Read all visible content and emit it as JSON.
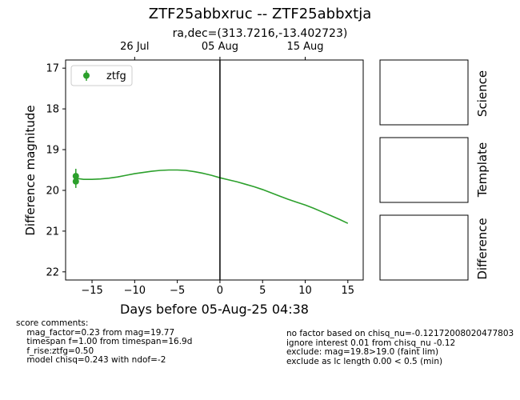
{
  "title": "ZTF25abbxruc -- ZTF25abbxtja",
  "subtitle": "ra,dec=(313.7216,-13.402723)",
  "chart_data": {
    "type": "line",
    "xlabel": "Days before 05-Aug-25 04:38",
    "ylabel": "Difference magnitude",
    "xlim": [
      -18.1,
      16.8
    ],
    "ylim": [
      22.2,
      16.8
    ],
    "y_inverted": true,
    "x_ticks": [
      -15,
      -10,
      -5,
      0,
      5,
      10,
      15
    ],
    "x_tick_labels": [
      "−15",
      "−10",
      "−5",
      "0",
      "5",
      "10",
      "15"
    ],
    "y_ticks": [
      17,
      18,
      19,
      20,
      21,
      22
    ],
    "top_axis_ticks": [
      {
        "x": -10,
        "label": "26 Jul"
      },
      {
        "x": 0,
        "label": "05 Aug"
      },
      {
        "x": 10,
        "label": "15 Aug"
      }
    ],
    "vertical_line_x": 0,
    "legend": {
      "placement": "upper-left",
      "entries": [
        {
          "label": "ztfg",
          "color": "#2ca02c"
        }
      ]
    },
    "series": [
      {
        "name": "ztfg",
        "color": "#2ca02c",
        "model": {
          "x": [
            -17,
            -16,
            -15,
            -14,
            -13,
            -12,
            -11,
            -10,
            -9,
            -8,
            -7,
            -6,
            -5,
            -4,
            -3,
            -2,
            -1,
            0,
            1,
            2,
            3,
            4,
            5,
            6,
            7,
            8,
            9,
            10,
            11,
            12,
            13,
            14,
            15
          ],
          "y": [
            19.7,
            19.73,
            19.73,
            19.72,
            19.7,
            19.67,
            19.63,
            19.59,
            19.56,
            19.53,
            19.51,
            19.5,
            19.5,
            19.51,
            19.54,
            19.58,
            19.63,
            19.69,
            19.74,
            19.79,
            19.85,
            19.91,
            19.98,
            20.06,
            20.14,
            20.22,
            20.29,
            20.36,
            20.44,
            20.53,
            20.62,
            20.71,
            20.81
          ]
        },
        "points": [
          {
            "x": -16.9,
            "y": 19.65,
            "err": 0.18
          },
          {
            "x": -16.9,
            "y": 19.78,
            "err": 0.16
          }
        ]
      }
    ]
  },
  "panels": [
    "Science",
    "Template",
    "Difference"
  ],
  "comments": {
    "left": "score comments:\n    mag_factor=0.23 from mag=19.77\n    timespan f=1.00 from timespan=16.9d\n    f_rise:ztfg=0.50\n    model chisq=0.243 with ndof=-2",
    "right": "no factor based on chisq_nu=-0.12172008020477803\nignore interest 0.01 from chisq_nu -0.12\nexclude: mag=19.8>19.0 (faint lim)\nexclude as lc length 0.00 < 0.5 (min)"
  }
}
